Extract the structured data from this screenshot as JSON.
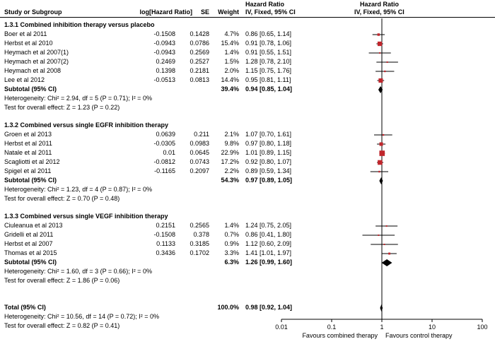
{
  "chart_data": {
    "type": "forest",
    "x_scale": "log",
    "xlim": [
      0.01,
      100
    ],
    "x_ticks": [
      "0.01",
      "0.1",
      "1",
      "10",
      "100"
    ],
    "x_tick_values": [
      0.01,
      0.1,
      1,
      10,
      100
    ],
    "null_line": 1,
    "favours_left": "Favours combined therapy",
    "favours_right": "Favours control therapy",
    "header": {
      "study": "Study or Subgroup",
      "loghr": "log[Hazard Ratio]",
      "se": "SE",
      "weight": "Weight",
      "hr_title": "Hazard Ratio",
      "hr_method": "IV, Fixed, 95% CI",
      "plot_title": "Hazard Ratio",
      "plot_method": "IV, Fixed, 95% CI"
    },
    "subgroups": [
      {
        "title": "1.3.1 Combined inhibition therapy versus placebo",
        "studies": [
          {
            "name": "Boer et al 2011",
            "loghr": "-0.1508",
            "se": "0.1428",
            "weight": "4.7%",
            "ci": "0.86 [0.65, 1.14]",
            "hr": 0.86,
            "lo": 0.65,
            "hi": 1.14,
            "w": 4.7
          },
          {
            "name": "Herbst et al 2010",
            "loghr": "-0.0943",
            "se": "0.0786",
            "weight": "15.4%",
            "ci": "0.91 [0.78, 1.06]",
            "hr": 0.91,
            "lo": 0.78,
            "hi": 1.06,
            "w": 15.4
          },
          {
            "name": "Heymach et al 2007(1)",
            "loghr": "-0.0943",
            "se": "0.2569",
            "weight": "1.4%",
            "ci": "0.91 [0.55, 1.51]",
            "hr": 0.91,
            "lo": 0.55,
            "hi": 1.51,
            "w": 1.4
          },
          {
            "name": "Heymach et al 2007(2)",
            "loghr": "0.2469",
            "se": "0.2527",
            "weight": "1.5%",
            "ci": "1.28 [0.78, 2.10]",
            "hr": 1.28,
            "lo": 0.78,
            "hi": 2.1,
            "w": 1.5
          },
          {
            "name": "Heymach et al 2008",
            "loghr": "0.1398",
            "se": "0.2181",
            "weight": "2.0%",
            "ci": "1.15 [0.75, 1.76]",
            "hr": 1.15,
            "lo": 0.75,
            "hi": 1.76,
            "w": 2.0
          },
          {
            "name": "Lee et al 2012",
            "loghr": "-0.0513",
            "se": "0.0813",
            "weight": "14.4%",
            "ci": "0.95 [0.81, 1.11]",
            "hr": 0.95,
            "lo": 0.81,
            "hi": 1.11,
            "w": 14.4
          }
        ],
        "subtotal": {
          "label": "Subtotal (95% CI)",
          "weight": "39.4%",
          "ci": "0.94 [0.85, 1.04]",
          "hr": 0.94,
          "lo": 0.85,
          "hi": 1.04
        },
        "heterogeneity": "Heterogeneity: Chi² = 2.94, df = 5 (P = 0.71); I² = 0%",
        "overall_effect": "Test for overall effect: Z = 1.23 (P = 0.22)"
      },
      {
        "title": "1.3.2 Combined versus single EGFR inhibition therapy",
        "studies": [
          {
            "name": "Groen et al 2013",
            "loghr": "0.0639",
            "se": "0.211",
            "weight": "2.1%",
            "ci": "1.07 [0.70, 1.61]",
            "hr": 1.07,
            "lo": 0.7,
            "hi": 1.61,
            "w": 2.1
          },
          {
            "name": "Herbst et al 2011",
            "loghr": "-0.0305",
            "se": "0.0983",
            "weight": "9.8%",
            "ci": "0.97 [0.80, 1.18]",
            "hr": 0.97,
            "lo": 0.8,
            "hi": 1.18,
            "w": 9.8
          },
          {
            "name": "Natale et al 2011",
            "loghr": "0.01",
            "se": "0.0645",
            "weight": "22.9%",
            "ci": "1.01 [0.89, 1.15]",
            "hr": 1.01,
            "lo": 0.89,
            "hi": 1.15,
            "w": 22.9
          },
          {
            "name": "Scagliotti et al 2012",
            "loghr": "-0.0812",
            "se": "0.0743",
            "weight": "17.2%",
            "ci": "0.92 [0.80, 1.07]",
            "hr": 0.92,
            "lo": 0.8,
            "hi": 1.07,
            "w": 17.2
          },
          {
            "name": "Spigel et al 2011",
            "loghr": "-0.1165",
            "se": "0.2097",
            "weight": "2.2%",
            "ci": "0.89 [0.59, 1.34]",
            "hr": 0.89,
            "lo": 0.59,
            "hi": 1.34,
            "w": 2.2
          }
        ],
        "subtotal": {
          "label": "Subtotal (95% CI)",
          "weight": "54.3%",
          "ci": "0.97 [0.89, 1.05]",
          "hr": 0.97,
          "lo": 0.89,
          "hi": 1.05
        },
        "heterogeneity": "Heterogeneity: Chi² = 1.23, df = 4 (P = 0.87); I² = 0%",
        "overall_effect": "Test for overall effect: Z = 0.70 (P = 0.48)"
      },
      {
        "title": "1.3.3 Combined versus single VEGF inhibition therapy",
        "studies": [
          {
            "name": "Ciuleanua et al 2013",
            "loghr": "0.2151",
            "se": "0.2565",
            "weight": "1.4%",
            "ci": "1.24 [0.75, 2.05]",
            "hr": 1.24,
            "lo": 0.75,
            "hi": 2.05,
            "w": 1.4
          },
          {
            "name": "Gridelli et al 2011",
            "loghr": "-0.1508",
            "se": "0.378",
            "weight": "0.7%",
            "ci": "0.86 [0.41, 1.80]",
            "hr": 0.86,
            "lo": 0.41,
            "hi": 1.8,
            "w": 0.7
          },
          {
            "name": "Herbst et al 2007",
            "loghr": "0.1133",
            "se": "0.3185",
            "weight": "0.9%",
            "ci": "1.12 [0.60, 2.09]",
            "hr": 1.12,
            "lo": 0.6,
            "hi": 2.09,
            "w": 0.9
          },
          {
            "name": "Thomas et al 2015",
            "loghr": "0.3436",
            "se": "0.1702",
            "weight": "3.3%",
            "ci": "1.41 [1.01, 1.97]",
            "hr": 1.41,
            "lo": 1.01,
            "hi": 1.97,
            "w": 3.3
          }
        ],
        "subtotal": {
          "label": "Subtotal (95% CI)",
          "weight": "6.3%",
          "ci": "1.26 [0.99, 1.60]",
          "hr": 1.26,
          "lo": 0.99,
          "hi": 1.6
        },
        "heterogeneity": "Heterogeneity: Chi² = 1.60, df = 3 (P = 0.66); I² = 0%",
        "overall_effect": "Test for overall effect: Z = 1.86 (P = 0.06)"
      }
    ],
    "total": {
      "label": "Total (95% CI)",
      "weight": "100.0%",
      "ci": "0.98 [0.92, 1.04]",
      "hr": 0.98,
      "lo": 0.92,
      "hi": 1.04,
      "heterogeneity": "Heterogeneity: Chi² = 10.56, df = 14 (P = 0.72); I² = 0%",
      "overall_effect": "Test for overall effect: Z = 0.82 (P = 0.41)"
    },
    "colors": {
      "square": "#c0262c",
      "diamond": "#000000",
      "line": "#000000"
    }
  }
}
